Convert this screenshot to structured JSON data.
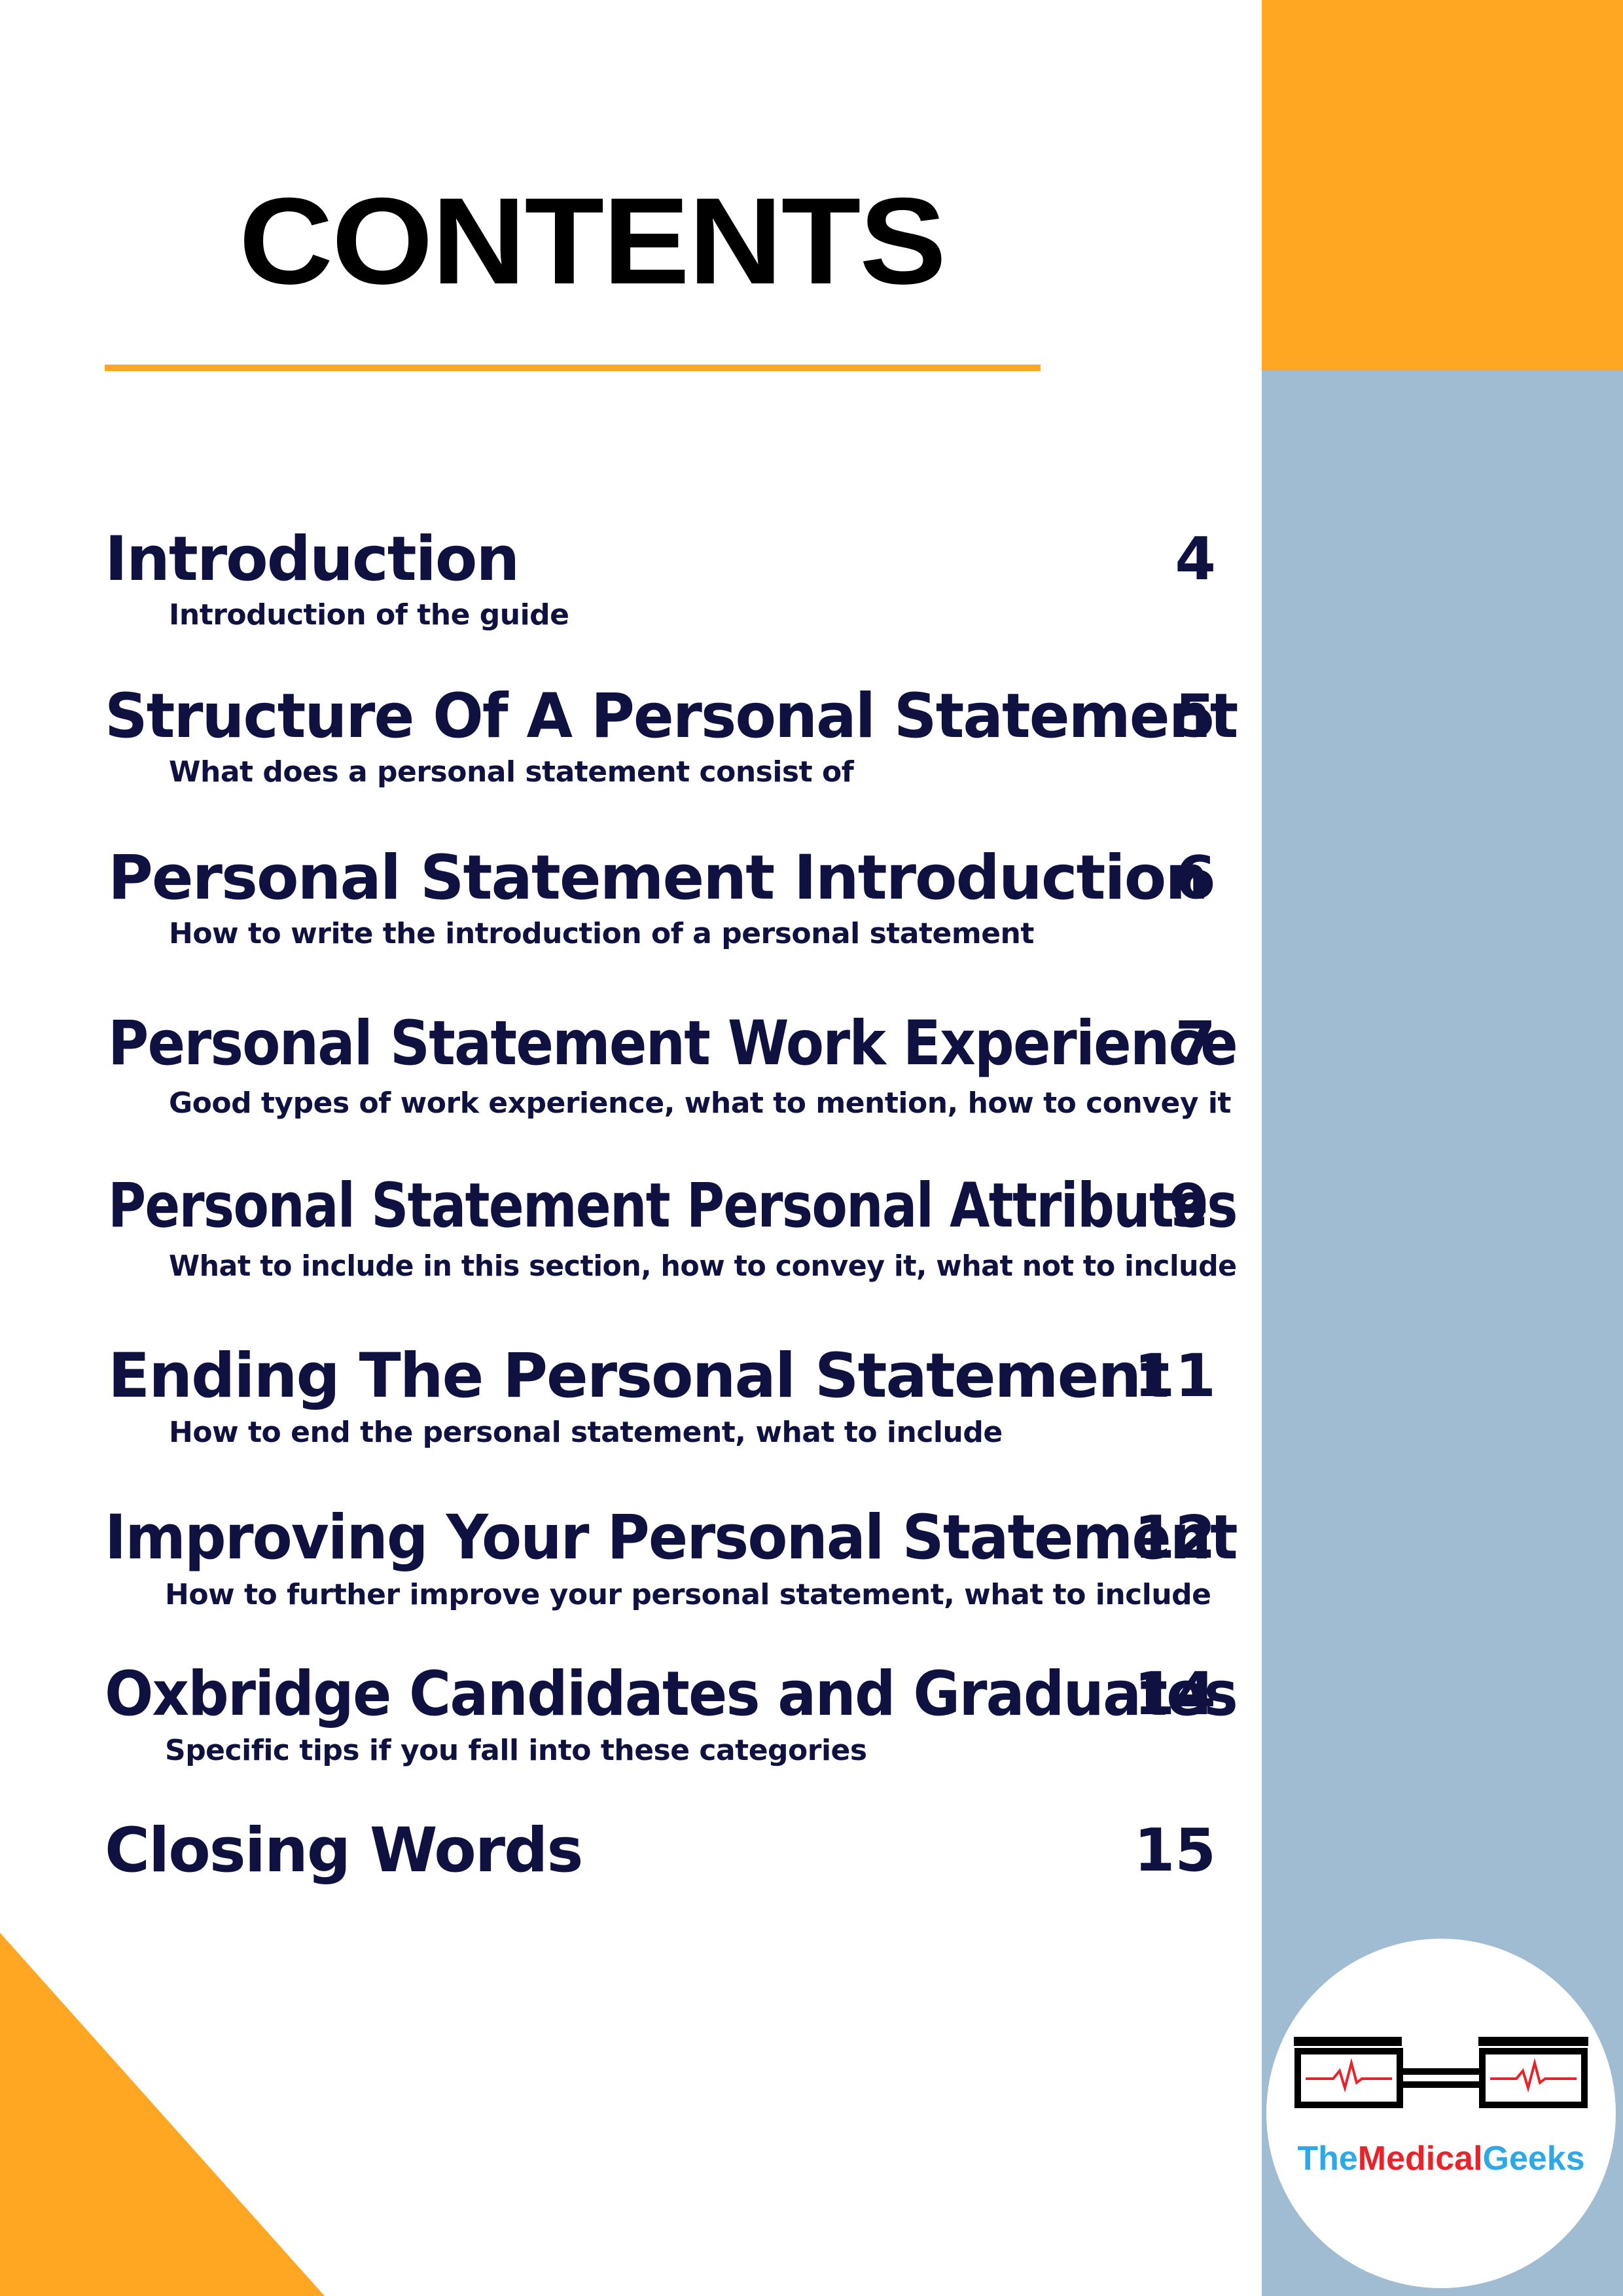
{
  "page": {
    "title": "CONTENTS"
  },
  "colors": {
    "accent_orange": "#FFA623",
    "side_blue": "#9FBCD2",
    "text_navy": "#0F1240"
  },
  "entries": [
    {
      "title": "Introduction",
      "subtitle": "Introduction of the guide",
      "page": "4"
    },
    {
      "title": "Structure Of A Personal Statement",
      "subtitle": "What does a personal statement consist of",
      "page": "5"
    },
    {
      "title": "Personal Statement Introduction",
      "subtitle": "How to write the introduction of a personal statement",
      "page": "6"
    },
    {
      "title": "Personal Statement Work Experience",
      "subtitle": "Good types of work experience, what to mention, how to convey it",
      "page": "7"
    },
    {
      "title": "Personal Statement Personal Attributes",
      "subtitle": "What to include in this section, how to convey it, what not to include",
      "page": "9"
    },
    {
      "title": "Ending The Personal Statement",
      "subtitle": "How to end the personal statement, what to include",
      "page": "11"
    },
    {
      "title": "Improving Your Personal Statement",
      "subtitle": "How to further improve your personal statement, what to include",
      "page": "12"
    },
    {
      "title": "Oxbridge Candidates and Graduates",
      "subtitle": "Specific tips if you fall into these categories",
      "page": "14"
    },
    {
      "title": "Closing Words",
      "page": "15"
    }
  ],
  "logo": {
    "part1": "The",
    "part2": "Medical",
    "part3": "Geeks",
    "icon": "glasses-heartbeat-icon"
  }
}
